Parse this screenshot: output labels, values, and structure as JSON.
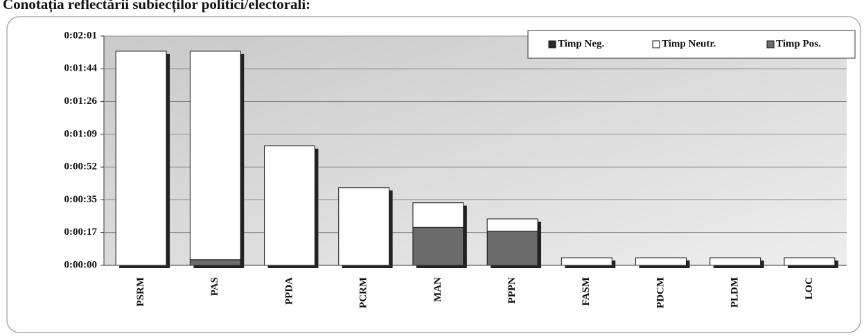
{
  "chart_data": {
    "type": "bar",
    "stacked": true,
    "title": "Conotația reflectării subiecților politici/electorali:",
    "categories": [
      "PSRM",
      "PAS",
      "PPDA",
      "PCRM",
      "MAN",
      "PPPN",
      "FASM",
      "PDCM",
      "PLDM",
      "LOC"
    ],
    "series": [
      {
        "name": "Timp Neg.",
        "color": "#2b2b2b",
        "values": [
          0,
          0,
          0,
          0,
          0,
          0,
          0,
          0,
          0,
          0
        ]
      },
      {
        "name": "Timp Neutr.",
        "color": "#ffffff",
        "values": [
          113,
          110,
          63,
          41,
          13,
          6.5,
          4,
          4,
          4,
          4
        ]
      },
      {
        "name": "Timp Pos.",
        "color": "#6b6b6b",
        "values": [
          0,
          3,
          0,
          0,
          20,
          18,
          0,
          0,
          0,
          0
        ]
      }
    ],
    "ylim": [
      0,
      121
    ],
    "yticks": [
      {
        "value": 0,
        "label": "0:00:00"
      },
      {
        "value": 17.29,
        "label": "0:00:17"
      },
      {
        "value": 34.57,
        "label": "0:00:35"
      },
      {
        "value": 51.86,
        "label": "0:00:52"
      },
      {
        "value": 69.14,
        "label": "0:01:09"
      },
      {
        "value": 86.43,
        "label": "0:01:26"
      },
      {
        "value": 103.71,
        "label": "0:01:44"
      },
      {
        "value": 121,
        "label": "0:02:01"
      }
    ],
    "grid": true,
    "legend": "top-right"
  }
}
